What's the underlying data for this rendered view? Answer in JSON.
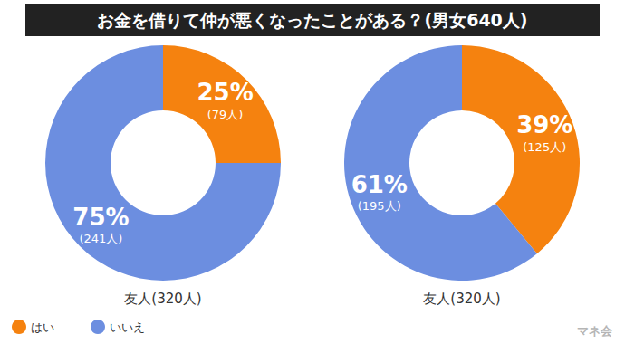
{
  "title": "お金を借りて仲が悪くなったことがある？(男女640人)",
  "legend": "bottom-left",
  "watermark": "マネ会",
  "chart_data": [
    {
      "type": "pie",
      "label": "友人(320人)",
      "categories": [
        "はい",
        "いいえ"
      ],
      "values": [
        25,
        75
      ],
      "value_labels": [
        "25%",
        "75%"
      ],
      "count_labels": [
        "(79人)",
        "(241人)"
      ],
      "colors": [
        "#f5820f",
        "#6c8ee0"
      ],
      "data_labels": true
    },
    {
      "type": "pie",
      "label": "友人(320人)",
      "categories": [
        "はい",
        "いいえ"
      ],
      "values": [
        39,
        61
      ],
      "value_labels": [
        "39%",
        "61%"
      ],
      "count_labels": [
        "(125人)",
        "(195人)"
      ],
      "colors": [
        "#f5820f",
        "#6c8ee0"
      ],
      "data_labels": true
    }
  ]
}
